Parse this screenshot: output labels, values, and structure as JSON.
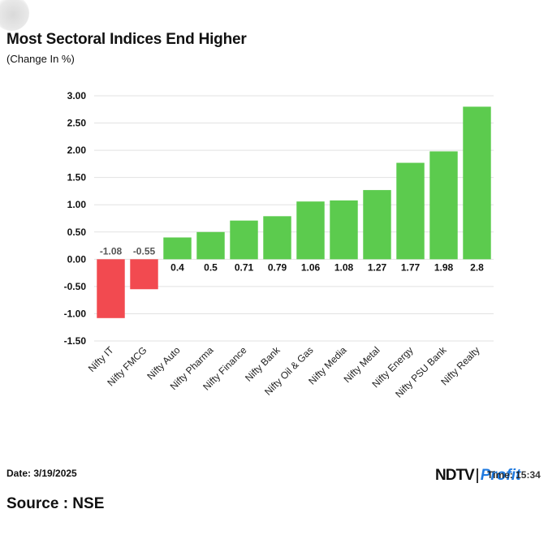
{
  "header": {
    "title": "Most Sectoral Indices End Higher",
    "subtitle": "(Change In %)"
  },
  "footer": {
    "date": "Date: 3/19/2025",
    "source": "Source : NSE",
    "time": "Time: 15:34"
  },
  "logo": {
    "ndtv": "NDTV",
    "profit": "Profit"
  },
  "colors": {
    "positive": "#5ccb4e",
    "negative": "#f24a50",
    "grid": "#e2e2e2",
    "axis_text": "#111111"
  },
  "chart_data": {
    "type": "bar",
    "title": "Most Sectoral Indices End Higher",
    "subtitle": "(Change In %)",
    "categories": [
      "Nifty IT",
      "Nifty FMCG",
      "Nifty Auto",
      "Nifty Pharma",
      "Nifty Finance",
      "Nifty Bank",
      "Nifty Oil & Gas",
      "Nifty Media",
      "Nifty Metal",
      "Nifty Energy",
      "Nifty PSU Bank",
      "Nifty Realty"
    ],
    "values": [
      -1.08,
      -0.55,
      0.4,
      0.5,
      0.71,
      0.79,
      1.06,
      1.08,
      1.27,
      1.77,
      1.98,
      2.8
    ],
    "value_labels": [
      "-1.08",
      "-0.55",
      "0.4",
      "0.5",
      "0.71",
      "0.79",
      "1.06",
      "1.08",
      "1.27",
      "1.77",
      "1.98",
      "2.8"
    ],
    "ylim": [
      -1.5,
      3.0
    ],
    "yticks": [
      3.0,
      2.5,
      2.0,
      1.5,
      1.0,
      0.5,
      0.0,
      -0.5,
      -1.0,
      -1.5
    ],
    "ytick_labels": [
      "3.00",
      "2.50",
      "2.00",
      "1.50",
      "1.00",
      "0.50",
      "0.00",
      "-0.50",
      "-1.00",
      "-1.50"
    ],
    "xlabel": "",
    "ylabel": "",
    "grid": true,
    "legend": "none"
  }
}
